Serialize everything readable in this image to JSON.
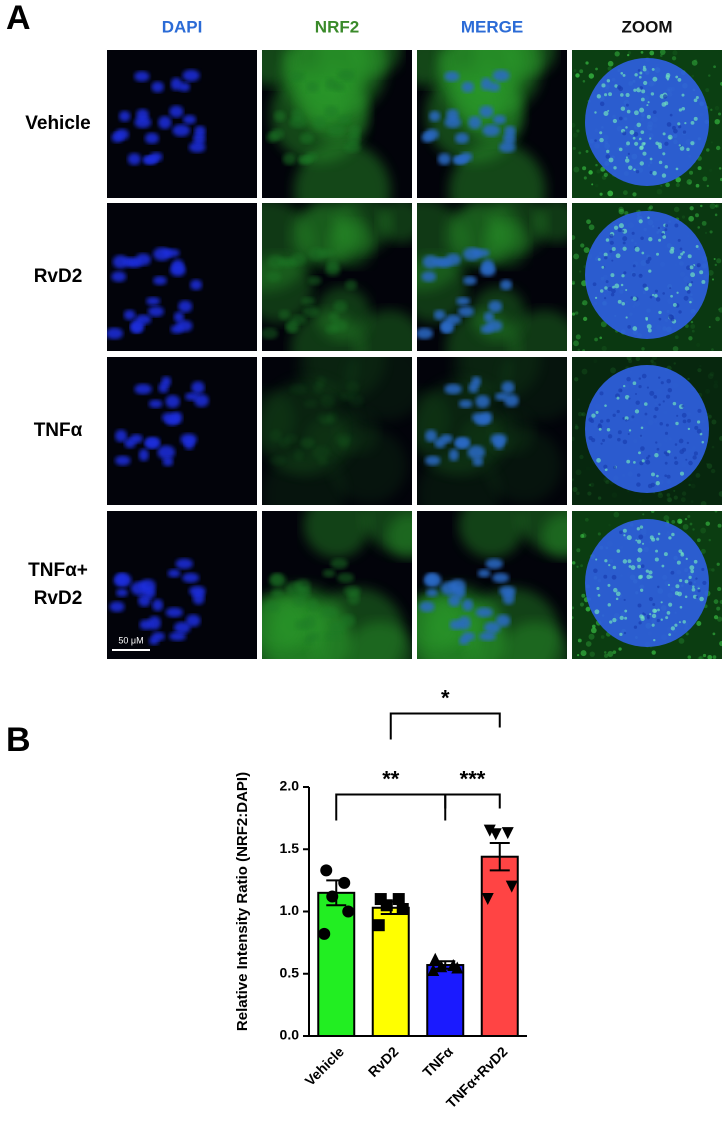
{
  "panel_a": {
    "label": "A",
    "columns": [
      "DAPI",
      "NRF2",
      "MERGE",
      "ZOOM"
    ],
    "rows": [
      [
        "Vehicle"
      ],
      [
        "RvD2"
      ],
      [
        "TNFα"
      ],
      [
        "TNFα+",
        "RvD2"
      ]
    ],
    "scale_bar": "50 μM"
  },
  "chart_data": {
    "type": "bar",
    "panel_label": "B",
    "y_label": "Relative Intensity Ratio (NRF2:DAPI)",
    "categories": [
      "Vehicle",
      "RvD2",
      "TNFα",
      "TNFα+RvD2"
    ],
    "values": [
      1.15,
      1.03,
      0.57,
      1.44
    ],
    "errors": [
      0.1,
      0.05,
      0.03,
      0.11
    ],
    "colors": [
      "#22ee22",
      "#ffff00",
      "#1a1aff",
      "#ff4444"
    ],
    "markers": [
      "circle",
      "square",
      "triangle",
      "triangle-down"
    ],
    "points": [
      [
        1.33,
        1.23,
        1.12,
        1.0,
        0.82
      ],
      [
        1.1,
        1.1,
        1.05,
        1.02,
        0.89
      ],
      [
        0.62,
        0.57,
        0.56,
        0.55,
        0.53
      ],
      [
        1.65,
        1.63,
        1.62,
        1.2,
        1.1
      ]
    ],
    "ylim": [
      0,
      2
    ],
    "yticks": [
      {
        "value": 0,
        "label": "0.0"
      },
      {
        "value": 0.5,
        "label": "0.5"
      },
      {
        "value": 1,
        "label": "1.0"
      },
      {
        "value": 1.5,
        "label": "1.5"
      },
      {
        "value": 2,
        "label": "2.0"
      }
    ],
    "comparisons": [
      {
        "from": 0,
        "to": 2,
        "y": 1.94,
        "label": "**"
      },
      {
        "from": 2,
        "to": 3,
        "y": 1.94,
        "label": "***"
      },
      {
        "from": 1,
        "to": 3,
        "y": 2.59,
        "label": "*"
      }
    ]
  }
}
